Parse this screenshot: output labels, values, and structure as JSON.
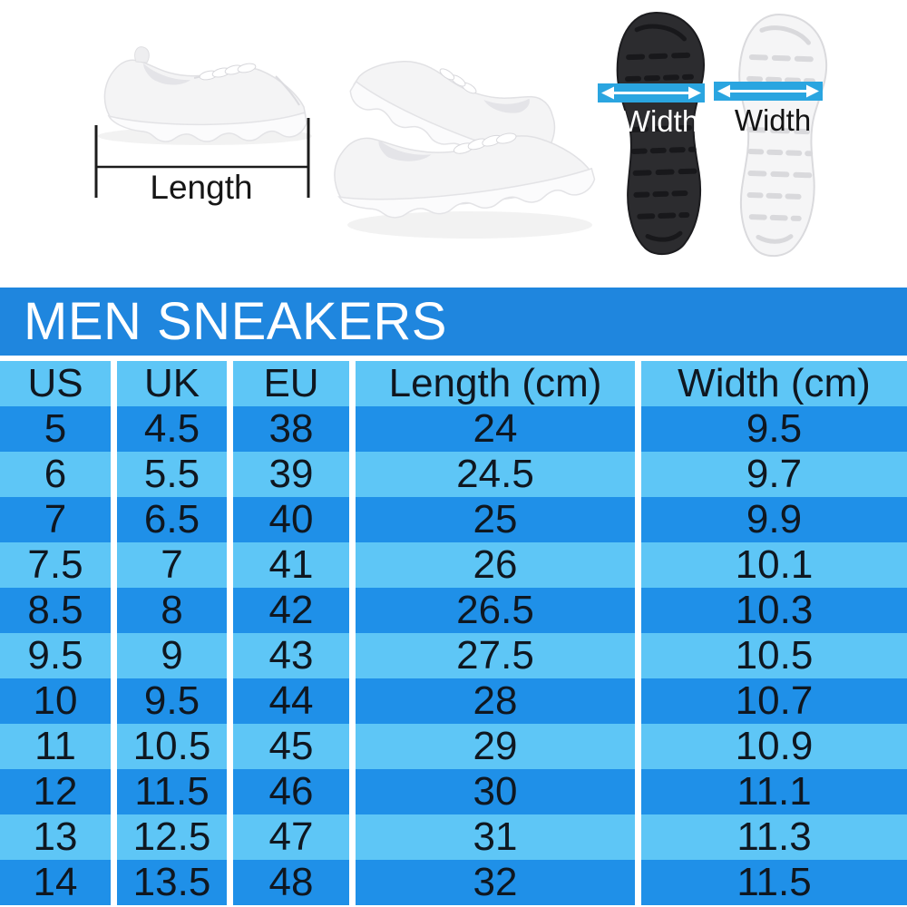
{
  "banner": {
    "title": "MEN SNEAKERS",
    "bg_color": "#1f86de",
    "text_color": "#ffffff"
  },
  "diagram": {
    "length_label": "Length",
    "sole_black_width_label": "Width",
    "sole_white_width_label": "Width",
    "arrow_bar_color": "#2aa5e0",
    "images": [
      "sneaker-side-photo",
      "sneakers-pair-photo",
      "black-sole-image",
      "white-sole-image"
    ]
  },
  "table": {
    "columns": [
      "US",
      "UK",
      "EU",
      "Length (cm)",
      "Width (cm)"
    ],
    "rows": [
      [
        "5",
        "4.5",
        "38",
        "24",
        "9.5"
      ],
      [
        "6",
        "5.5",
        "39",
        "24.5",
        "9.7"
      ],
      [
        "7",
        "6.5",
        "40",
        "25",
        "9.9"
      ],
      [
        "7.5",
        "7",
        "41",
        "26",
        "10.1"
      ],
      [
        "8.5",
        "8",
        "42",
        "26.5",
        "10.3"
      ],
      [
        "9.5",
        "9",
        "43",
        "27.5",
        "10.5"
      ],
      [
        "10",
        "9.5",
        "44",
        "28",
        "10.7"
      ],
      [
        "11",
        "10.5",
        "45",
        "29",
        "10.9"
      ],
      [
        "12",
        "11.5",
        "46",
        "30",
        "11.1"
      ],
      [
        "13",
        "12.5",
        "47",
        "31",
        "11.3"
      ],
      [
        "14",
        "13.5",
        "48",
        "32",
        "11.5"
      ]
    ],
    "colors": {
      "row_dark": "#1f90e8",
      "row_light": "#5ec6f6",
      "header_bg": "#5ec6f6",
      "text": "#0f1720",
      "gutter": "#ffffff"
    }
  },
  "chart_data": {
    "type": "table",
    "title": "MEN SNEAKERS",
    "columns": [
      "US",
      "UK",
      "EU",
      "Length (cm)",
      "Width (cm)"
    ],
    "rows": [
      [
        5,
        4.5,
        38,
        24,
        9.5
      ],
      [
        6,
        5.5,
        39,
        24.5,
        9.7
      ],
      [
        7,
        6.5,
        40,
        25,
        9.9
      ],
      [
        7.5,
        7,
        41,
        26,
        10.1
      ],
      [
        8.5,
        8,
        42,
        26.5,
        10.3
      ],
      [
        9.5,
        9,
        43,
        27.5,
        10.5
      ],
      [
        10,
        9.5,
        44,
        28,
        10.7
      ],
      [
        11,
        10.5,
        45,
        29,
        10.9
      ],
      [
        12,
        11.5,
        46,
        30,
        11.1
      ],
      [
        13,
        12.5,
        47,
        31,
        11.3
      ],
      [
        14,
        13.5,
        48,
        32,
        11.5
      ]
    ],
    "layout": "header row + 11 data rows, alternating dark/light blue, white column gutters"
  }
}
